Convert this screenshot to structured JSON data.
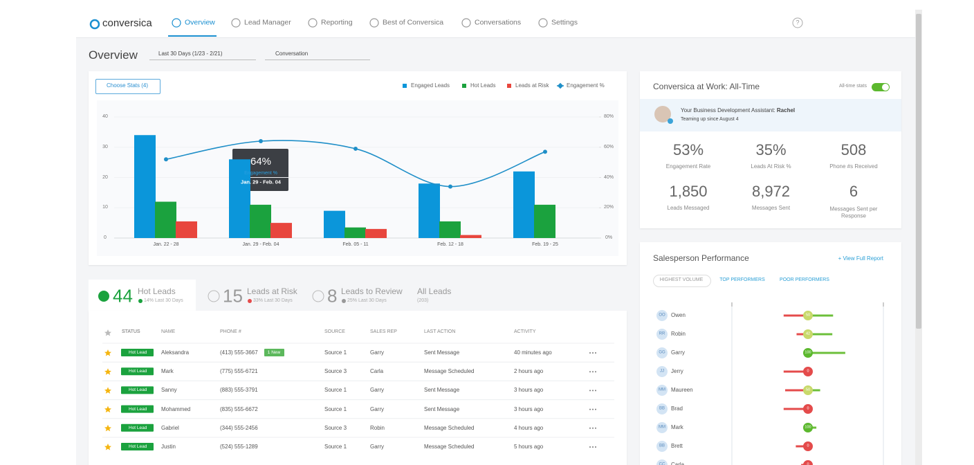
{
  "nav": {
    "logo": "conversica",
    "items": [
      "Overview",
      "Lead Manager",
      "Reporting",
      "Best of Conversica",
      "Conversations",
      "Settings"
    ],
    "help": "?"
  },
  "toolbar": {
    "title": "Overview",
    "date_range": "Last 30 Days (1/23 - 2/21)",
    "filter": "Conversation"
  },
  "chart": {
    "type": "bar",
    "button": "Choose Stats (4)",
    "categories": [
      "Jan. 22 - 28",
      "Jan. 29 - Feb. 04",
      "Feb. 05 - 11",
      "Feb. 12 - 18",
      "Feb. 19 - 25"
    ],
    "series": [
      {
        "name": "Engaged Leads",
        "color": "#0b96da",
        "values": [
          34,
          26,
          9,
          18,
          22
        ]
      },
      {
        "name": "Hot Leads",
        "color": "#1ba23e",
        "values": [
          12,
          11,
          3.5,
          5.5,
          11
        ]
      },
      {
        "name": "Leads at Risk",
        "color": "#e8463d",
        "values": [
          5.5,
          5,
          3,
          1,
          0
        ]
      },
      {
        "name": "Engagement %",
        "type": "line",
        "axis": "y2",
        "color": "#1f8fc8",
        "values": [
          52,
          64,
          59,
          34,
          57
        ],
        "value_labels": [
          null,
          "64%",
          null,
          null,
          null
        ]
      }
    ],
    "ylim": [
      0,
      40
    ],
    "yticks": [
      0,
      10,
      20,
      30,
      40
    ],
    "y2lim": [
      0,
      80
    ],
    "y2ticks": [
      {
        "value": 0,
        "label": "0%"
      },
      {
        "value": 20,
        "label": "20%"
      },
      {
        "value": 40,
        "label": "40%"
      },
      {
        "value": 60,
        "label": "60%"
      },
      {
        "value": 80,
        "label": "80%"
      }
    ]
  },
  "work_card": {
    "title": "Conversica at Work: All-Time",
    "toggle": "All-time stats",
    "assistant_prefix": "Your Business Development Assistant:",
    "assistant_name": "Rachel",
    "assistant_since": "Teaming up since August 4",
    "stats": [
      {
        "value": "53%",
        "label": "Engagement Rate"
      },
      {
        "value": "35%",
        "label": "Leads At Risk %"
      },
      {
        "value": "508",
        "label": "Phone #s Received"
      },
      {
        "value": "1,850",
        "label": "Leads Messaged"
      },
      {
        "value": "8,972",
        "label": "Messages Sent"
      },
      {
        "value": "6",
        "label": "Messages Sent per Response"
      }
    ]
  },
  "performance": {
    "title": "Salesperson Performance",
    "link": "+ View Full Report",
    "tabs": [
      "HIGHEST VOLUME",
      "TOP PERFORMERS",
      "POOR PERFORMERS"
    ],
    "xlim": [
      -100,
      100
    ],
    "people": [
      {
        "initials": "OO",
        "name": "Owen",
        "score": "50",
        "color": "#c8d96a",
        "risk": -32,
        "hot": 33
      },
      {
        "initials": "RR",
        "name": "Robin",
        "score": "42",
        "color": "#c8d96a",
        "risk": -15,
        "hot": 32
      },
      {
        "initials": "GG",
        "name": "Garry",
        "score": "100",
        "color": "#5cb82e",
        "risk": 0,
        "hot": 49
      },
      {
        "initials": "JJ",
        "name": "Jerry",
        "score": "0",
        "color": "#e44b4b",
        "risk": -32,
        "hot": 0
      },
      {
        "initials": "MM",
        "name": "Maureen",
        "score": "50",
        "color": "#c8d96a",
        "risk": -30,
        "hot": 16
      },
      {
        "initials": "BB",
        "name": "Brad",
        "score": "0",
        "color": "#e44b4b",
        "risk": -32,
        "hot": 0
      },
      {
        "initials": "MM",
        "name": "Mark",
        "score": "100",
        "color": "#5cb82e",
        "risk": 0,
        "hot": 11
      },
      {
        "initials": "BB",
        "name": "Brett",
        "score": "0",
        "color": "#e44b4b",
        "risk": -16,
        "hot": 0
      },
      {
        "initials": "CC",
        "name": "Carla",
        "score": "0",
        "color": "#e44b4b",
        "risk": -9,
        "hot": 0
      }
    ]
  },
  "lead_tabs": [
    {
      "count": "44",
      "title": "Hot Leads",
      "sub": "14% Last 30 Days"
    },
    {
      "count": "15",
      "title": "Leads at Risk",
      "sub": "33% Last 30 Days"
    },
    {
      "count": "8",
      "title": "Leads to Review",
      "sub": "25% Last 30 Days"
    },
    {
      "title": "All Leads",
      "sub": "(203)"
    }
  ],
  "table": {
    "columns": [
      "STATUS",
      "NAME",
      "PHONE #",
      "SOURCE",
      "SALES REP",
      "LAST ACTION",
      "ACTIVITY"
    ],
    "rows": [
      {
        "status": "Hot Lead",
        "name": "Aleksandra",
        "phone": "(413) 555-3667",
        "badge": "1 New",
        "source": "Source 1",
        "rep": "Garry",
        "action": "Sent Message",
        "activity": "40 minutes ago"
      },
      {
        "status": "Hot Lead",
        "name": "Mark",
        "phone": "(775) 555-6721",
        "source": "Source 3",
        "rep": "Carla",
        "action": "Message Scheduled",
        "activity": "2 hours ago"
      },
      {
        "status": "Hot Lead",
        "name": "Sanny",
        "phone": "(883) 555-3791",
        "source": "Source 1",
        "rep": "Garry",
        "action": "Sent Message",
        "activity": "3 hours ago"
      },
      {
        "status": "Hot Lead",
        "name": "Mohammed",
        "phone": "(835) 555-6672",
        "source": "Source 1",
        "rep": "Garry",
        "action": "Sent Message",
        "activity": "3 hours ago"
      },
      {
        "status": "Hot Lead",
        "name": "Gabriel",
        "phone": "(344) 555-2456",
        "source": "Source 3",
        "rep": "Robin",
        "action": "Message Scheduled",
        "activity": "4 hours ago"
      },
      {
        "status": "Hot Lead",
        "name": "Justin",
        "phone": "(524) 555-1289",
        "source": "Source 1",
        "rep": "Garry",
        "action": "Message Scheduled",
        "activity": "5 hours ago"
      }
    ]
  }
}
